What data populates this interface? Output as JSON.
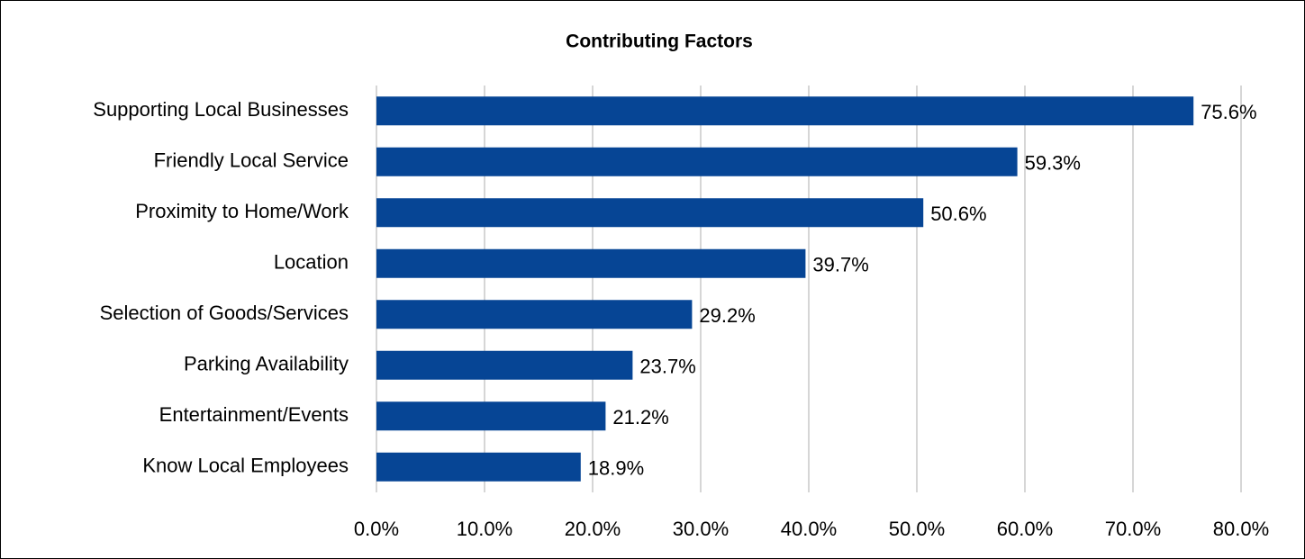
{
  "chart_data": {
    "type": "bar",
    "orientation": "horizontal",
    "title": "Contributing Factors",
    "categories": [
      "Supporting Local Businesses",
      "Friendly Local Service",
      "Proximity to Home/Work",
      "Location",
      "Selection of Goods/Services",
      "Parking Availability",
      "Entertainment/Events",
      "Know Local Employees"
    ],
    "values": [
      75.6,
      59.3,
      50.6,
      39.7,
      29.2,
      23.7,
      21.2,
      18.9
    ],
    "value_labels": [
      "75.6%",
      "59.3%",
      "50.6%",
      "39.7%",
      "29.2%",
      "23.7%",
      "21.2%",
      "18.9%"
    ],
    "color": "#064595",
    "xlim": [
      0,
      80
    ],
    "xticks": [
      {
        "value": 0,
        "label": "0.0%"
      },
      {
        "value": 10,
        "label": "10.0%"
      },
      {
        "value": 20,
        "label": "20.0%"
      },
      {
        "value": 30,
        "label": "30.0%"
      },
      {
        "value": 40,
        "label": "40.0%"
      },
      {
        "value": 50,
        "label": "50.0%"
      },
      {
        "value": 60,
        "label": "60.0%"
      },
      {
        "value": 70,
        "label": "70.0%"
      },
      {
        "value": 80,
        "label": "80.0%"
      }
    ],
    "grid": true
  }
}
